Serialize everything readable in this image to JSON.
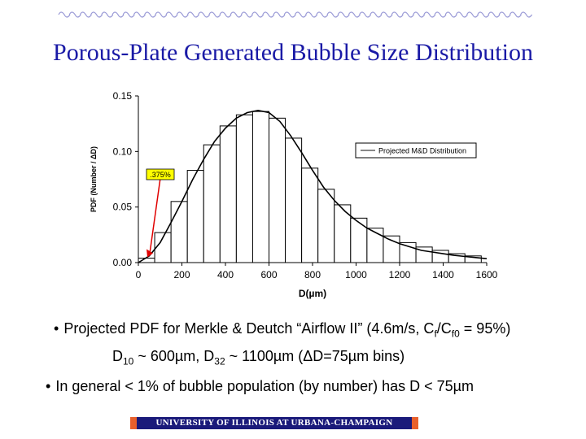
{
  "slide": {
    "title": "Porous-Plate Generated Bubble Size Distribution",
    "bullets": {
      "b1_prefix": "Projected PDF for Merkle & Deutch “Airflow II” (4.6m/s, C",
      "b1_sub1": "f",
      "b1_mid": "/C",
      "b1_sub2": "f0",
      "b1_suffix": " = 95%)",
      "b2_a": "D",
      "b2_a_sub": "10",
      "b2_b": " ~ 600µm, D",
      "b2_b_sub": "32",
      "b2_c": " ~ 1100µm (ΔD=75µm bins)",
      "b3": "In general < 1% of bubble population (by number) has D < 75µm"
    },
    "bullet_symbol": "•",
    "footer": "UNIVERSITY OF ILLINOIS AT URBANA-CHAMPAIGN",
    "colors": {
      "title": "#1a1aa6",
      "ornament": "#9a9ad6",
      "footer_bg": "#1a1a7a",
      "footer_accent": "#e8602c",
      "annotation_arrow": "#e00000",
      "annotation_box": "#ffff00"
    }
  },
  "chart_data": {
    "type": "bar",
    "xlabel": "D(µm)",
    "ylabel": "PDF (Number / ΔD)",
    "xlim": [
      0,
      1600
    ],
    "ylim": [
      0,
      0.15
    ],
    "x_ticks": [
      "0",
      "200",
      "400",
      "600",
      "800",
      "1000",
      "1200",
      "1400",
      "1600"
    ],
    "y_ticks": [
      "0.00",
      "0.05",
      "0.10",
      "0.15"
    ],
    "grid": false,
    "bin_width": 75,
    "bin_starts": [
      0,
      75,
      150,
      225,
      300,
      375,
      450,
      525,
      600,
      675,
      750,
      825,
      900,
      975,
      1050,
      1125,
      1200,
      1275,
      1350,
      1425,
      1500
    ],
    "histogram_values": [
      0.004,
      0.027,
      0.055,
      0.083,
      0.106,
      0.123,
      0.133,
      0.136,
      0.13,
      0.112,
      0.085,
      0.066,
      0.052,
      0.04,
      0.031,
      0.024,
      0.018,
      0.014,
      0.011,
      0.008,
      0.006
    ],
    "curve": {
      "name": "Projected M&D Distribution",
      "x": [
        0,
        50,
        100,
        150,
        200,
        250,
        300,
        350,
        400,
        450,
        500,
        550,
        600,
        650,
        700,
        750,
        800,
        850,
        900,
        950,
        1000,
        1050,
        1100,
        1150,
        1200,
        1250,
        1300,
        1350,
        1400,
        1450,
        1500,
        1550,
        1600
      ],
      "y": [
        0.0,
        0.006,
        0.018,
        0.036,
        0.055,
        0.075,
        0.093,
        0.109,
        0.121,
        0.13,
        0.135,
        0.137,
        0.135,
        0.127,
        0.114,
        0.099,
        0.083,
        0.068,
        0.056,
        0.046,
        0.038,
        0.031,
        0.026,
        0.021,
        0.017,
        0.014,
        0.011,
        0.0095,
        0.008,
        0.0065,
        0.0055,
        0.0045,
        0.0035
      ]
    },
    "legend": {
      "entries": [
        "Projected M&D Distribution"
      ],
      "placement": "right"
    },
    "annotation": {
      "text": ".375%",
      "x": 30,
      "y": 0.004
    }
  }
}
